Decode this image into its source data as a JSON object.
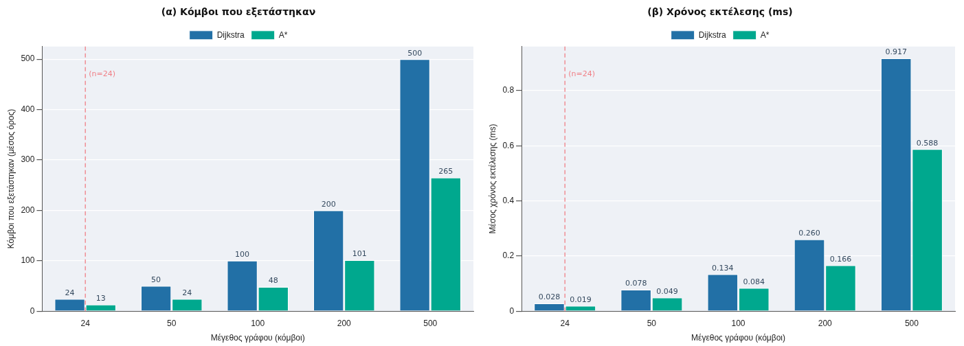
{
  "chart_data": [
    {
      "type": "bar",
      "title": "(α) Κόμβοι που εξετάστηκαν",
      "xlabel": "Μέγεθος γράφου (κόμβοι)",
      "ylabel": "Κόμβοι που εξετάστηκαν (μέσος όρος)",
      "categories": [
        "24",
        "50",
        "100",
        "200",
        "500"
      ],
      "series": [
        {
          "name": "Dijkstra",
          "color": "#2270a6",
          "values": [
            24,
            50,
            100,
            200,
            500
          ]
        },
        {
          "name": "A*",
          "color": "#00a88e",
          "values": [
            13,
            24,
            48,
            101,
            265
          ]
        }
      ],
      "ylim": [
        0,
        525
      ],
      "yticks": [
        0,
        100,
        200,
        300,
        400,
        500
      ],
      "grid": "y",
      "legend": "top",
      "data_labels": true,
      "ref_lines": [
        {
          "axis": "x",
          "value": "24",
          "label": "(n=24)",
          "color": "#f07f86",
          "line_style": "dashed"
        }
      ]
    },
    {
      "type": "bar",
      "title": "(β) Χρόνος εκτέλεσης (ms)",
      "xlabel": "Μέγεθος γράφου (κόμβοι)",
      "ylabel": "Μέσος χρόνος εκτέλεσης (ms)",
      "categories": [
        "24",
        "50",
        "100",
        "200",
        "500"
      ],
      "series": [
        {
          "name": "Dijkstra",
          "color": "#2270a6",
          "values": [
            0.028,
            0.078,
            0.134,
            0.26,
            0.917
          ],
          "value_labels": [
            "0.028",
            "0.078",
            "0.134",
            "0.260",
            "0.917"
          ]
        },
        {
          "name": "A*",
          "color": "#00a88e",
          "values": [
            0.019,
            0.049,
            0.084,
            0.166,
            0.588
          ],
          "value_labels": [
            "0.019",
            "0.049",
            "0.084",
            "0.166",
            "0.588"
          ]
        }
      ],
      "ylim": [
        0,
        0.96
      ],
      "yticks": [
        0,
        0.2,
        0.4,
        0.6,
        0.8
      ],
      "grid": "y",
      "legend": "top",
      "ref_lines": [
        {
          "axis": "x",
          "value": "24",
          "label": "(n=24)",
          "color": "#f07f86",
          "line_style": "dashed"
        }
      ]
    }
  ]
}
